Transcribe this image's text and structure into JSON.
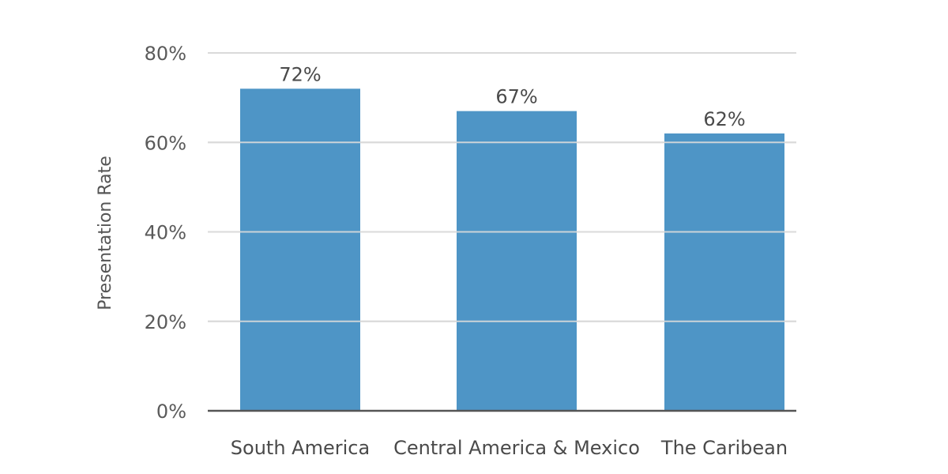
{
  "chart_data": {
    "type": "bar",
    "title": "",
    "xlabel": "",
    "ylabel": "Presentation Rate",
    "categories": [
      "South America",
      "Central America & Mexico",
      "The Caribean"
    ],
    "values": [
      72,
      67,
      62
    ],
    "value_labels": [
      "72%",
      "67%",
      "62%"
    ],
    "unit": "%",
    "ylim": [
      0,
      80
    ],
    "yticks": [
      0,
      20,
      40,
      60,
      80
    ],
    "ytick_labels": [
      "0%",
      "20%",
      "40%",
      "60%",
      "80%"
    ],
    "grid": true,
    "legend": "none",
    "colors": {
      "bar": "#4e95c6",
      "grid": "#d9d9d9",
      "baseline": "#555555"
    }
  }
}
